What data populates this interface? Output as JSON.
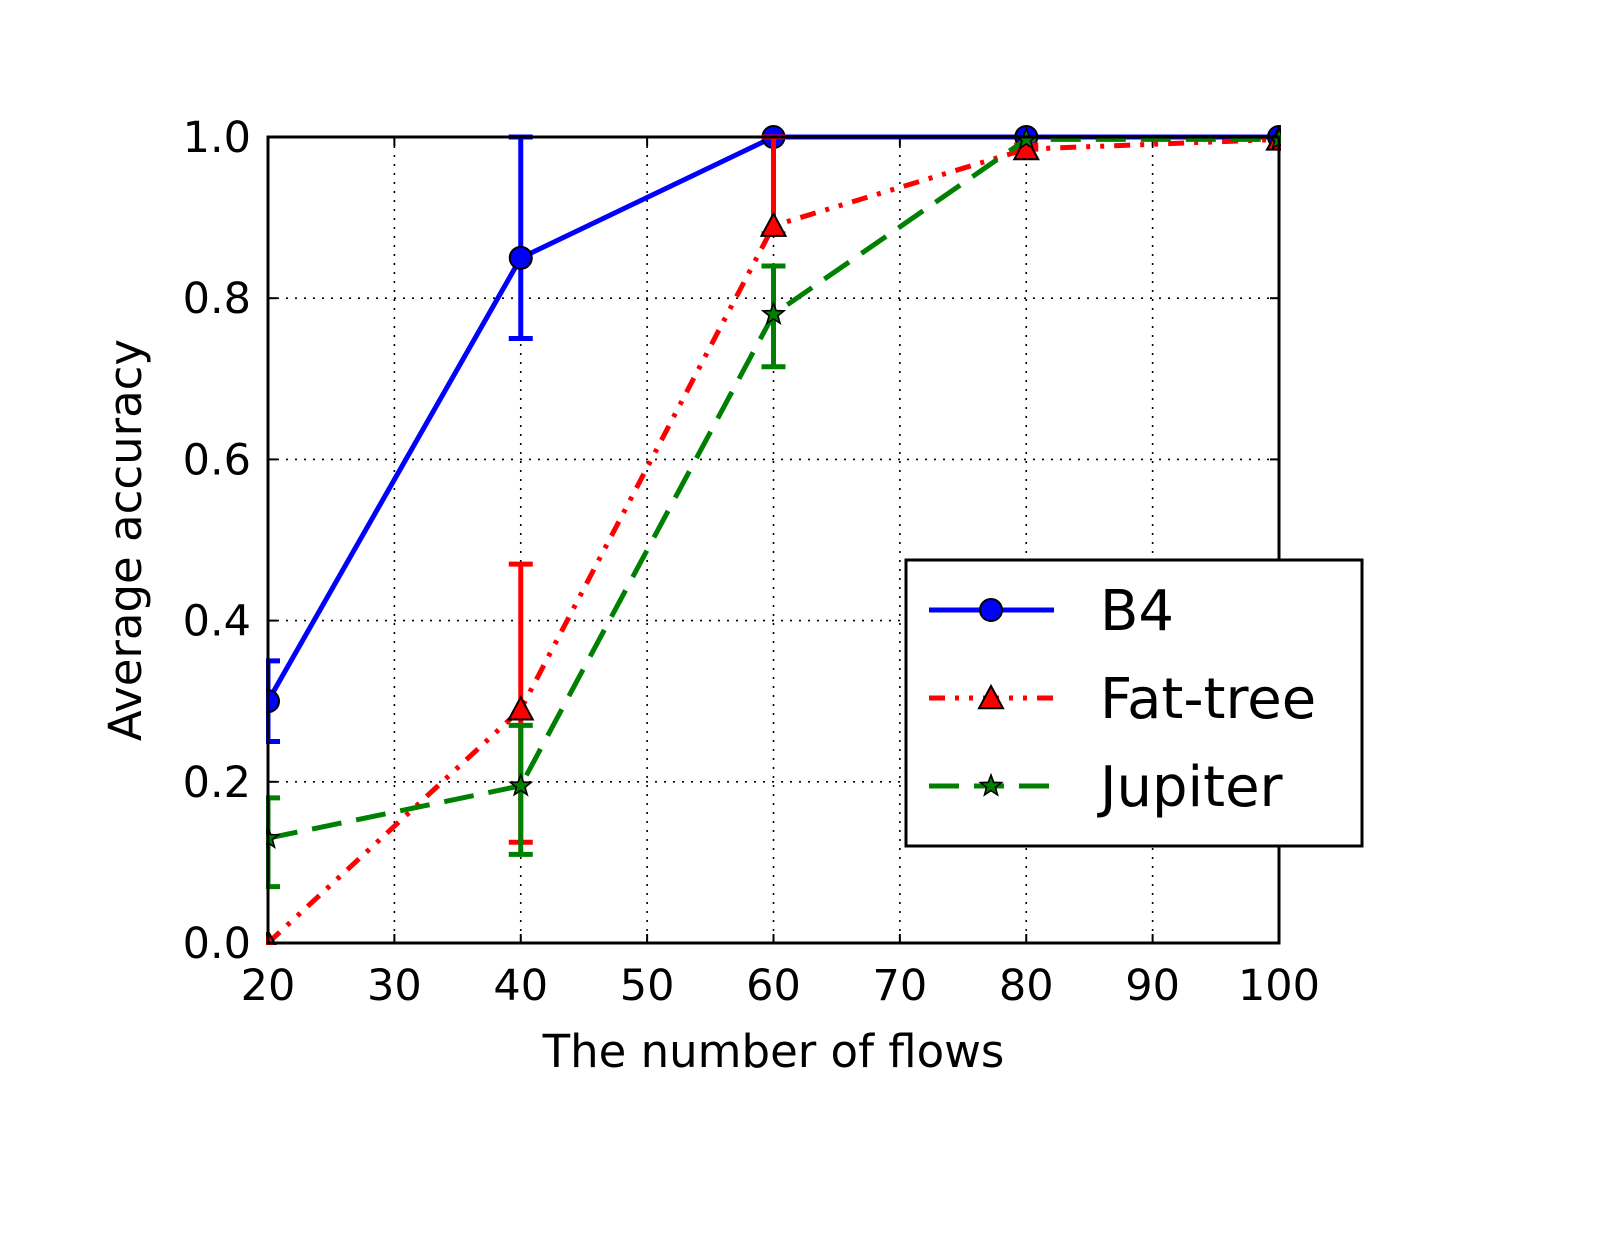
{
  "chart_data": {
    "type": "line",
    "title": "",
    "xlabel": "The number of flows",
    "ylabel": "Average accuracy",
    "xlim": [
      20,
      100
    ],
    "ylim": [
      0.0,
      1.0
    ],
    "xticks": [
      "20",
      "30",
      "40",
      "50",
      "60",
      "70",
      "80",
      "90",
      "100"
    ],
    "yticks": [
      "0.0",
      "0.2",
      "0.4",
      "0.6",
      "0.8",
      "1.0"
    ],
    "grid": true,
    "legend_position": "center-right",
    "x": [
      20,
      40,
      60,
      80,
      100
    ],
    "series": [
      {
        "name": "B4",
        "color": "#0000ff",
        "line_style": "solid",
        "marker": "circle",
        "values": [
          0.3,
          0.85,
          1.0,
          1.0,
          1.0
        ],
        "error_low": [
          0.25,
          0.75,
          1.0,
          1.0,
          1.0
        ],
        "error_high": [
          0.35,
          1.0,
          1.0,
          1.0,
          1.0
        ]
      },
      {
        "name": "Fat-tree",
        "color": "#ff0000",
        "line_style": "dash-dot-dot",
        "marker": "triangle",
        "values": [
          0.0,
          0.29,
          0.89,
          0.985,
          0.997
        ],
        "error_low": [
          0.0,
          0.125,
          0.88,
          0.985,
          0.997
        ],
        "error_high": [
          0.0,
          0.47,
          1.0,
          0.99,
          0.997
        ]
      },
      {
        "name": "Jupiter",
        "color": "#008000",
        "line_style": "dashed",
        "marker": "star",
        "values": [
          0.13,
          0.195,
          0.78,
          0.997,
          0.997
        ],
        "error_low": [
          0.07,
          0.11,
          0.715,
          0.997,
          0.997
        ],
        "error_high": [
          0.18,
          0.27,
          0.84,
          0.997,
          0.997
        ]
      }
    ]
  }
}
